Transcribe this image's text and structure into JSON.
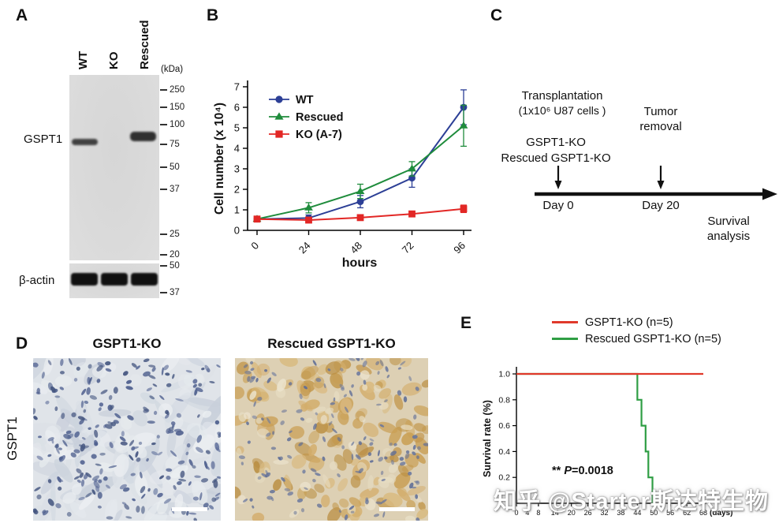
{
  "panels": {
    "a": {
      "label": "A",
      "lanes": [
        "WT",
        "KO",
        "Rescued"
      ],
      "kda_label": "(kDa)",
      "markers_main": [
        250,
        150,
        100,
        75,
        50,
        37,
        25,
        20
      ],
      "markers_actin": [
        50,
        37
      ],
      "band_label": "GSPT1",
      "actin_label": "β-actin"
    },
    "b": {
      "label": "B"
    },
    "c": {
      "label": "C",
      "transplant_line1": "Transplantation",
      "transplant_line2": "(1x10⁶ U87 cells )",
      "groups_line1": "GSPT1-KO",
      "groups_line2": "Rescued GSPT1-KO",
      "tumor_removal": "Tumor removal",
      "day0": "Day 0",
      "day20": "Day 20",
      "survival_analysis": "Survival analysis"
    },
    "d": {
      "label": "D",
      "left_title": "GSPT1-KO",
      "right_title": "Rescued GSPT1-KO",
      "row_label": "GSPT1"
    },
    "e": {
      "label": "E",
      "legend": [
        {
          "label": "GSPT1-KO (n=5)",
          "color": "#e0392b"
        },
        {
          "label": "Rescued GSPT1-KO (n=5)",
          "color": "#2f9e44"
        }
      ],
      "annotation_prefix": "** ",
      "annotation_p": "P",
      "annotation_value": "=0.0018"
    }
  },
  "watermark": "知乎 @Starter斯达特生物",
  "chart_data": [
    {
      "id": "proliferation",
      "type": "line",
      "x": [
        0,
        24,
        48,
        72,
        96
      ],
      "xlabel": "hours",
      "ylabel": "Cell number (x 10⁴)",
      "ylim": [
        0,
        7
      ],
      "y_ticks": [
        0,
        1,
        2,
        3,
        4,
        5,
        6,
        7
      ],
      "legend_position": "top-left",
      "series": [
        {
          "name": "WT",
          "marker": "circle",
          "color": "#2c3f96",
          "values": [
            0.55,
            0.6,
            1.4,
            2.55,
            6.0
          ],
          "errors": [
            0.1,
            0.15,
            0.3,
            0.45,
            0.85
          ]
        },
        {
          "name": "Rescued",
          "marker": "triangle",
          "color": "#1f8c3c",
          "values": [
            0.55,
            1.1,
            1.9,
            3.0,
            5.1
          ],
          "errors": [
            0.1,
            0.25,
            0.35,
            0.35,
            1.0
          ]
        },
        {
          "name": "KO (A-7)",
          "marker": "square",
          "color": "#e22725",
          "values": [
            0.55,
            0.5,
            0.62,
            0.8,
            1.05
          ],
          "errors": [
            0.05,
            0.12,
            0.1,
            0.12,
            0.18
          ]
        }
      ]
    },
    {
      "id": "survival",
      "type": "line",
      "subtype": "kaplan-meier",
      "xlabel": "(days)",
      "ylabel": "Survival rate (%)",
      "xlim": [
        0,
        68
      ],
      "ylim": [
        0,
        1.0
      ],
      "x_ticks": [
        0,
        4,
        8,
        14,
        20,
        26,
        32,
        38,
        44,
        50,
        56,
        62,
        68
      ],
      "y_ticks": [
        0.2,
        0.4,
        0.6,
        0.8,
        1.0
      ],
      "annotation": "** P=0.0018",
      "series": [
        {
          "name": "GSPT1-KO (n=5)",
          "color": "#e0392b",
          "points": [
            [
              0,
              1.0
            ],
            [
              68,
              1.0
            ]
          ]
        },
        {
          "name": "Rescued GSPT1-KO (n=5)",
          "color": "#2f9e44",
          "points": [
            [
              0,
              1.0
            ],
            [
              44,
              1.0
            ],
            [
              44,
              0.8
            ],
            [
              45.5,
              0.8
            ],
            [
              45.5,
              0.6
            ],
            [
              47,
              0.6
            ],
            [
              47,
              0.4
            ],
            [
              48,
              0.4
            ],
            [
              48,
              0.2
            ],
            [
              49.5,
              0.2
            ],
            [
              49.5,
              0.0
            ]
          ]
        }
      ]
    }
  ]
}
